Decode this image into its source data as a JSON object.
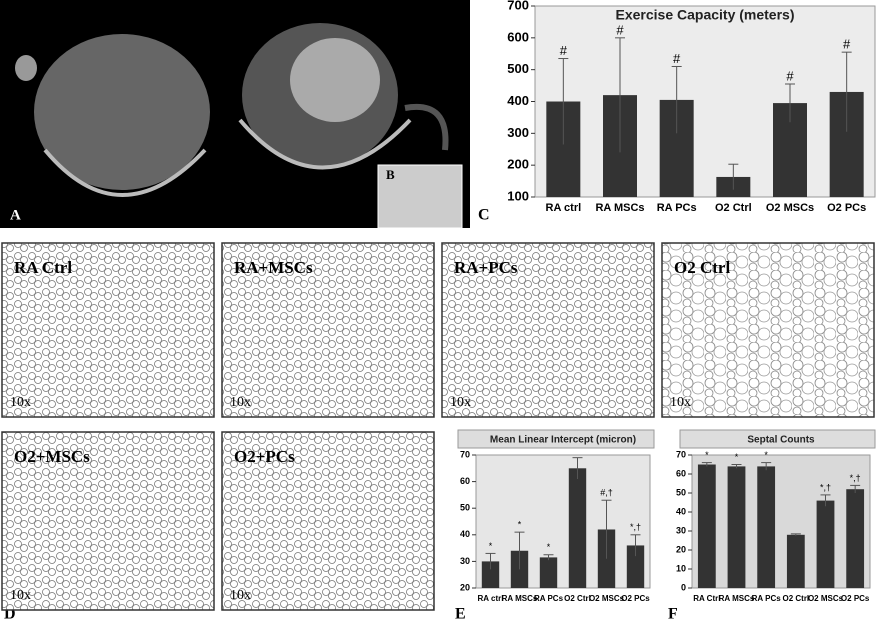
{
  "panel_labels": [
    "A",
    "B",
    "C",
    "D",
    "E",
    "F"
  ],
  "histology": [
    {
      "title": "RA Ctrl",
      "magnification": "10x"
    },
    {
      "title": "RA+MSCs",
      "magnification": "10x"
    },
    {
      "title": "RA+PCs",
      "magnification": "10x"
    },
    {
      "title": "O2 Ctrl",
      "magnification": "10x"
    },
    {
      "title": "O2+MSCs",
      "magnification": "10x"
    },
    {
      "title": "O2+PCs",
      "magnification": "10x"
    }
  ],
  "chart_data": [
    {
      "type": "bar",
      "title": "Exercise Capacity (meters)",
      "categories": [
        "RA ctrl",
        "RA MSCs",
        "RA PCs",
        "O2 Ctrl",
        "O2 MSCs",
        "O2 PCs"
      ],
      "values": [
        400,
        420,
        405,
        163,
        395,
        430
      ],
      "errors": [
        135,
        180,
        105,
        40,
        60,
        125
      ],
      "annotations": [
        "#",
        "#",
        "#",
        null,
        "#",
        "#"
      ],
      "ylim": [
        100,
        700
      ],
      "yticks": [
        100,
        200,
        300,
        400,
        500,
        600,
        700
      ],
      "color": "#333333"
    },
    {
      "type": "bar",
      "title": "Mean Linear Intercept (micron)",
      "categories": [
        "RA ctrl",
        "RA MSCs",
        "RA PCs",
        "O2 Ctrl",
        "O2 MSCs",
        "O2 PCs"
      ],
      "values": [
        30,
        34,
        31.5,
        65,
        42,
        36
      ],
      "errors": [
        3,
        7,
        1,
        4,
        11,
        4
      ],
      "annotations": [
        "*",
        "*",
        "*",
        null,
        "#,†",
        "*,†"
      ],
      "ylim": [
        20,
        70
      ],
      "yticks": [
        20,
        30,
        40,
        50,
        60,
        70
      ],
      "color": "#333333"
    },
    {
      "type": "bar",
      "title": "Septal Counts",
      "categories": [
        "RA Ctrl",
        "RA MSCs",
        "RA PCs",
        "O2 Ctrl",
        "O2 MSCs",
        "O2 PCs"
      ],
      "values": [
        65,
        64,
        64,
        28,
        46,
        52
      ],
      "errors": [
        1,
        1,
        2,
        0.5,
        3,
        2
      ],
      "annotations": [
        "*",
        "*",
        "*",
        null,
        "*,†",
        "*,†"
      ],
      "ylim": [
        0,
        70
      ],
      "yticks": [
        0,
        10,
        20,
        30,
        40,
        50,
        60,
        70
      ],
      "color": "#333333"
    }
  ]
}
